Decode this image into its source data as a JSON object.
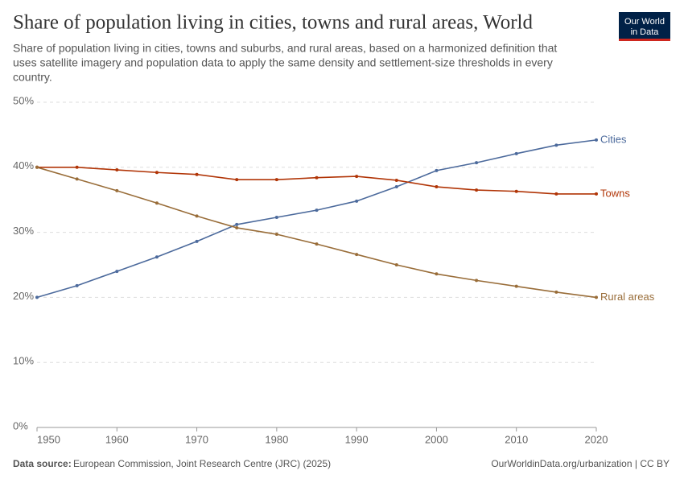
{
  "logo": [
    "Our World",
    "in Data"
  ],
  "chart_data": {
    "type": "line",
    "title": "Share of population living in cities, towns and rural areas, World",
    "subtitle": [
      "Share of population living in cities, towns and suburbs, and rural areas, based on a harmonized definition that",
      "uses satellite imagery and population data to apply the same density and settlement-size thresholds in every",
      "country."
    ],
    "x": [
      1950,
      1955,
      1960,
      1965,
      1970,
      1975,
      1980,
      1985,
      1990,
      1995,
      2000,
      2005,
      2010,
      2015,
      2020
    ],
    "series": [
      {
        "name": "Cities",
        "color": "#4c6a9c",
        "values": [
          20.0,
          21.8,
          24.0,
          26.2,
          28.6,
          31.2,
          32.3,
          33.4,
          34.8,
          37.0,
          39.5,
          40.7,
          42.1,
          43.4,
          44.2
        ]
      },
      {
        "name": "Towns",
        "color": "#b13507",
        "values": [
          40.0,
          40.0,
          39.6,
          39.2,
          38.9,
          38.1,
          38.1,
          38.4,
          38.6,
          38.0,
          37.0,
          36.5,
          36.3,
          35.9,
          35.9
        ]
      },
      {
        "name": "Rural areas",
        "color": "#996d39",
        "values": [
          40.0,
          38.2,
          36.4,
          34.5,
          32.5,
          30.7,
          29.7,
          28.2,
          26.6,
          25.0,
          23.6,
          22.6,
          21.7,
          20.8,
          20.0
        ]
      }
    ],
    "xlim": [
      1950,
      2020
    ],
    "xticks": [
      1950,
      1960,
      1970,
      1980,
      1990,
      2000,
      2010,
      2020
    ],
    "ylim": [
      0,
      50
    ],
    "yticks": [
      {
        "value": 0,
        "label": "0%"
      },
      {
        "value": 10,
        "label": "10%"
      },
      {
        "value": 20,
        "label": "20%"
      },
      {
        "value": 30,
        "label": "30%"
      },
      {
        "value": 40,
        "label": "40%"
      },
      {
        "value": 50,
        "label": "50%"
      }
    ],
    "grid": true,
    "source_label": "Data source:",
    "source": "European Commission, Joint Research Centre (JRC) (2025)",
    "credit": "OurWorldinData.org/urbanization | CC BY"
  }
}
